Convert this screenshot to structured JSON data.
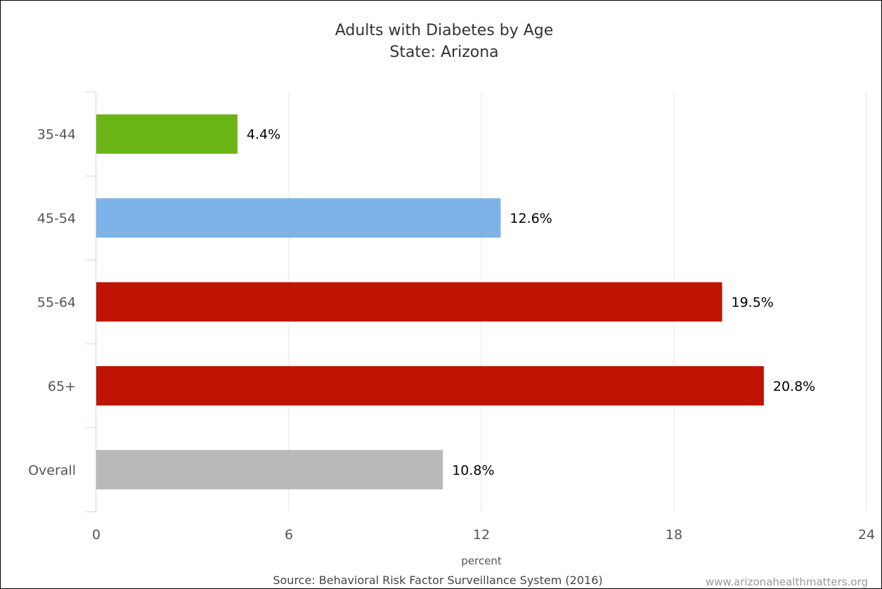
{
  "chart_data": {
    "type": "bar",
    "orientation": "horizontal",
    "title": "Adults with Diabetes by Age",
    "subtitle": "State: Arizona",
    "categories": [
      "35-44",
      "45-54",
      "55-64",
      "65+",
      "Overall"
    ],
    "values": [
      4.4,
      12.6,
      19.5,
      20.8,
      10.8
    ],
    "data_labels": [
      "4.4%",
      "12.6%",
      "19.5%",
      "20.8%",
      "10.8%"
    ],
    "colors": [
      "#6ab515",
      "#7db3e8",
      "#be1400",
      "#be1400",
      "#b9b9b9"
    ],
    "xlabel": "percent",
    "ylabel": "",
    "xlim": [
      0,
      24
    ],
    "xticks": [
      0,
      6,
      12,
      18,
      24
    ],
    "grid": true,
    "legend": "none"
  },
  "footer": {
    "source": "Source: Behavioral Risk Factor Surveillance System (2016)",
    "credit": "www.arizonahealthmatters.org"
  }
}
